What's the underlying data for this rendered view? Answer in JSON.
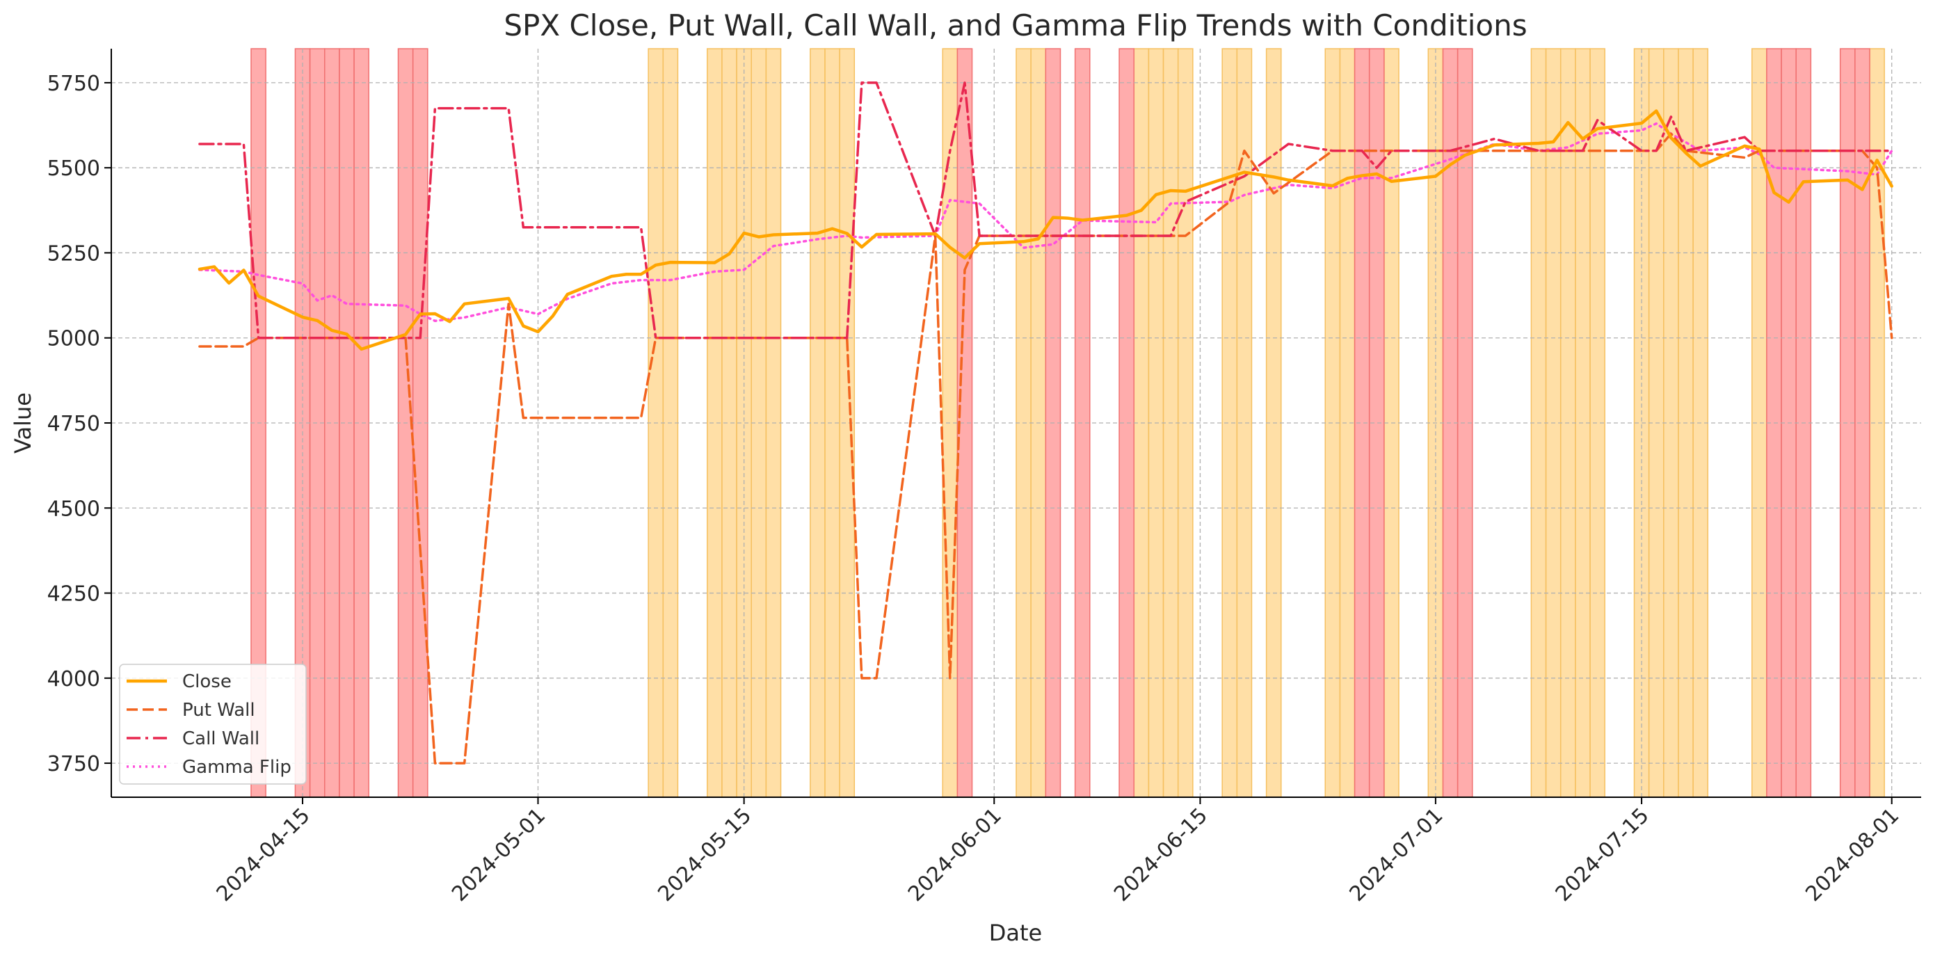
{
  "chart_data": {
    "type": "line",
    "title": "SPX Close, Put Wall, Call Wall, and Gamma Flip Trends with Conditions",
    "xlabel": "Date",
    "ylabel": "Value",
    "ylim": [
      3650,
      5850
    ],
    "xlim": [
      "2024-04-02",
      "2024-08-03"
    ],
    "grid": true,
    "legend_position": "bottom-left",
    "x_ticks": [
      "2024-04-15",
      "2024-05-01",
      "2024-05-15",
      "2024-06-01",
      "2024-06-15",
      "2024-07-01",
      "2024-07-15",
      "2024-08-01"
    ],
    "y_ticks": [
      3750,
      4000,
      4250,
      4500,
      4750,
      5000,
      5250,
      5500,
      5750
    ],
    "series": [
      {
        "name": "Close",
        "color": "#ffa500",
        "style": "solid",
        "points": [
          [
            "2024-04-08",
            5202
          ],
          [
            "2024-04-09",
            5209
          ],
          [
            "2024-04-10",
            5161
          ],
          [
            "2024-04-11",
            5199
          ],
          [
            "2024-04-12",
            5123
          ],
          [
            "2024-04-15",
            5061
          ],
          [
            "2024-04-16",
            5051
          ],
          [
            "2024-04-17",
            5022
          ],
          [
            "2024-04-18",
            5011
          ],
          [
            "2024-04-19",
            4967
          ],
          [
            "2024-04-22",
            5010
          ],
          [
            "2024-04-23",
            5070
          ],
          [
            "2024-04-24",
            5071
          ],
          [
            "2024-04-25",
            5048
          ],
          [
            "2024-04-26",
            5100
          ],
          [
            "2024-04-29",
            5116
          ],
          [
            "2024-04-30",
            5035
          ],
          [
            "2024-05-01",
            5018
          ],
          [
            "2024-05-02",
            5064
          ],
          [
            "2024-05-03",
            5128
          ],
          [
            "2024-05-06",
            5181
          ],
          [
            "2024-05-07",
            5187
          ],
          [
            "2024-05-08",
            5187
          ],
          [
            "2024-05-09",
            5214
          ],
          [
            "2024-05-10",
            5222
          ],
          [
            "2024-05-13",
            5221
          ],
          [
            "2024-05-14",
            5247
          ],
          [
            "2024-05-15",
            5308
          ],
          [
            "2024-05-16",
            5297
          ],
          [
            "2024-05-17",
            5303
          ],
          [
            "2024-05-20",
            5308
          ],
          [
            "2024-05-21",
            5321
          ],
          [
            "2024-05-22",
            5307
          ],
          [
            "2024-05-23",
            5267
          ],
          [
            "2024-05-24",
            5304
          ],
          [
            "2024-05-28",
            5306
          ],
          [
            "2024-05-29",
            5266
          ],
          [
            "2024-05-30",
            5235
          ],
          [
            "2024-05-31",
            5277
          ],
          [
            "2024-06-03",
            5283
          ],
          [
            "2024-06-04",
            5291
          ],
          [
            "2024-06-05",
            5354
          ],
          [
            "2024-06-06",
            5352
          ],
          [
            "2024-06-07",
            5346
          ],
          [
            "2024-06-10",
            5360
          ],
          [
            "2024-06-11",
            5375
          ],
          [
            "2024-06-12",
            5421
          ],
          [
            "2024-06-13",
            5433
          ],
          [
            "2024-06-14",
            5431
          ],
          [
            "2024-06-17",
            5473
          ],
          [
            "2024-06-18",
            5487
          ],
          [
            "2024-06-20",
            5473
          ],
          [
            "2024-06-21",
            5464
          ],
          [
            "2024-06-24",
            5447
          ],
          [
            "2024-06-25",
            5469
          ],
          [
            "2024-06-26",
            5477
          ],
          [
            "2024-06-27",
            5482
          ],
          [
            "2024-06-28",
            5460
          ],
          [
            "2024-07-01",
            5475
          ],
          [
            "2024-07-02",
            5509
          ],
          [
            "2024-07-03",
            5537
          ],
          [
            "2024-07-05",
            5567
          ],
          [
            "2024-07-08",
            5572
          ],
          [
            "2024-07-09",
            5576
          ],
          [
            "2024-07-10",
            5633
          ],
          [
            "2024-07-11",
            5585
          ],
          [
            "2024-07-12",
            5615
          ],
          [
            "2024-07-15",
            5631
          ],
          [
            "2024-07-16",
            5667
          ],
          [
            "2024-07-17",
            5588
          ],
          [
            "2024-07-18",
            5544
          ],
          [
            "2024-07-19",
            5505
          ],
          [
            "2024-07-22",
            5564
          ],
          [
            "2024-07-23",
            5555
          ],
          [
            "2024-07-24",
            5427
          ],
          [
            "2024-07-25",
            5399
          ],
          [
            "2024-07-26",
            5459
          ],
          [
            "2024-07-29",
            5464
          ],
          [
            "2024-07-30",
            5436
          ],
          [
            "2024-07-31",
            5522
          ],
          [
            "2024-08-01",
            5446
          ]
        ]
      },
      {
        "name": "Put Wall",
        "color": "#f2641e",
        "style": "dashed",
        "points": [
          [
            "2024-04-08",
            4975
          ],
          [
            "2024-04-11",
            4975
          ],
          [
            "2024-04-12",
            5000
          ],
          [
            "2024-04-22",
            5000
          ],
          [
            "2024-04-24",
            3750
          ],
          [
            "2024-04-26",
            3750
          ],
          [
            "2024-04-29",
            5100
          ],
          [
            "2024-04-30",
            4765
          ],
          [
            "2024-05-07",
            4765
          ],
          [
            "2024-05-08",
            4765
          ],
          [
            "2024-05-09",
            5000
          ],
          [
            "2024-05-22",
            5000
          ],
          [
            "2024-05-23",
            4000
          ],
          [
            "2024-05-24",
            4000
          ],
          [
            "2024-05-28",
            5300
          ],
          [
            "2024-05-29",
            4000
          ],
          [
            "2024-05-30",
            5200
          ],
          [
            "2024-05-31",
            5300
          ],
          [
            "2024-06-14",
            5300
          ],
          [
            "2024-06-17",
            5400
          ],
          [
            "2024-06-18",
            5550
          ],
          [
            "2024-06-20",
            5425
          ],
          [
            "2024-06-24",
            5550
          ],
          [
            "2024-07-16",
            5550
          ],
          [
            "2024-07-17",
            5600
          ],
          [
            "2024-07-18",
            5550
          ],
          [
            "2024-07-22",
            5530
          ],
          [
            "2024-07-23",
            5550
          ],
          [
            "2024-07-30",
            5550
          ],
          [
            "2024-07-31",
            5500
          ],
          [
            "2024-08-01",
            5000
          ]
        ]
      },
      {
        "name": "Call Wall",
        "color": "#e8274f",
        "style": "dashdot",
        "points": [
          [
            "2024-04-08",
            5570
          ],
          [
            "2024-04-11",
            5570
          ],
          [
            "2024-04-12",
            5000
          ],
          [
            "2024-04-23",
            5000
          ],
          [
            "2024-04-24",
            5675
          ],
          [
            "2024-04-29",
            5675
          ],
          [
            "2024-04-30",
            5325
          ],
          [
            "2024-05-08",
            5325
          ],
          [
            "2024-05-09",
            5000
          ],
          [
            "2024-05-22",
            5000
          ],
          [
            "2024-05-23",
            5750
          ],
          [
            "2024-05-24",
            5750
          ],
          [
            "2024-05-28",
            5300
          ],
          [
            "2024-05-29",
            5550
          ],
          [
            "2024-05-30",
            5750
          ],
          [
            "2024-05-31",
            5300
          ],
          [
            "2024-06-13",
            5300
          ],
          [
            "2024-06-14",
            5400
          ],
          [
            "2024-06-18",
            5475
          ],
          [
            "2024-06-21",
            5570
          ],
          [
            "2024-06-24",
            5550
          ],
          [
            "2024-06-26",
            5550
          ],
          [
            "2024-06-27",
            5500
          ],
          [
            "2024-06-28",
            5550
          ],
          [
            "2024-07-02",
            5550
          ],
          [
            "2024-07-05",
            5585
          ],
          [
            "2024-07-08",
            5550
          ],
          [
            "2024-07-11",
            5550
          ],
          [
            "2024-07-12",
            5640
          ],
          [
            "2024-07-15",
            5550
          ],
          [
            "2024-07-16",
            5550
          ],
          [
            "2024-07-17",
            5650
          ],
          [
            "2024-07-18",
            5550
          ],
          [
            "2024-07-22",
            5590
          ],
          [
            "2024-07-23",
            5550
          ],
          [
            "2024-08-01",
            5550
          ]
        ]
      },
      {
        "name": "Gamma Flip",
        "color": "#ff4fdc",
        "style": "dotted",
        "points": [
          [
            "2024-04-08",
            5200
          ],
          [
            "2024-04-11",
            5195
          ],
          [
            "2024-04-12",
            5185
          ],
          [
            "2024-04-15",
            5160
          ],
          [
            "2024-04-16",
            5110
          ],
          [
            "2024-04-17",
            5125
          ],
          [
            "2024-04-18",
            5100
          ],
          [
            "2024-04-22",
            5095
          ],
          [
            "2024-04-23",
            5070
          ],
          [
            "2024-04-24",
            5050
          ],
          [
            "2024-04-26",
            5060
          ],
          [
            "2024-04-29",
            5090
          ],
          [
            "2024-05-01",
            5070
          ],
          [
            "2024-05-03",
            5115
          ],
          [
            "2024-05-06",
            5160
          ],
          [
            "2024-05-08",
            5170
          ],
          [
            "2024-05-10",
            5170
          ],
          [
            "2024-05-13",
            5195
          ],
          [
            "2024-05-15",
            5200
          ],
          [
            "2024-05-17",
            5270
          ],
          [
            "2024-05-20",
            5290
          ],
          [
            "2024-05-22",
            5300
          ],
          [
            "2024-05-23",
            5295
          ],
          [
            "2024-05-28",
            5300
          ],
          [
            "2024-05-29",
            5405
          ],
          [
            "2024-05-31",
            5395
          ],
          [
            "2024-06-03",
            5265
          ],
          [
            "2024-06-05",
            5275
          ],
          [
            "2024-06-07",
            5345
          ],
          [
            "2024-06-12",
            5340
          ],
          [
            "2024-06-13",
            5395
          ],
          [
            "2024-06-17",
            5400
          ],
          [
            "2024-06-18",
            5420
          ],
          [
            "2024-06-21",
            5450
          ],
          [
            "2024-06-24",
            5440
          ],
          [
            "2024-06-26",
            5470
          ],
          [
            "2024-06-28",
            5470
          ],
          [
            "2024-07-02",
            5525
          ],
          [
            "2024-07-05",
            5570
          ],
          [
            "2024-07-08",
            5550
          ],
          [
            "2024-07-10",
            5560
          ],
          [
            "2024-07-12",
            5600
          ],
          [
            "2024-07-15",
            5610
          ],
          [
            "2024-07-16",
            5630
          ],
          [
            "2024-07-17",
            5600
          ],
          [
            "2024-07-19",
            5550
          ],
          [
            "2024-07-22",
            5560
          ],
          [
            "2024-07-23",
            5540
          ],
          [
            "2024-07-24",
            5500
          ],
          [
            "2024-07-29",
            5490
          ],
          [
            "2024-07-31",
            5480
          ],
          [
            "2024-08-01",
            5550
          ]
        ]
      }
    ],
    "condition_bands": {
      "red": {
        "color": "#ff8c8c",
        "dates": [
          "2024-04-12",
          "2024-04-15",
          "2024-04-16",
          "2024-04-17",
          "2024-04-18",
          "2024-04-19",
          "2024-04-22",
          "2024-04-23",
          "2024-05-30",
          "2024-06-05",
          "2024-06-07",
          "2024-06-10",
          "2024-06-26",
          "2024-06-27",
          "2024-07-02",
          "2024-07-03",
          "2024-07-24",
          "2024-07-25",
          "2024-07-26",
          "2024-07-29",
          "2024-07-30"
        ]
      },
      "orange": {
        "color": "#ffd280",
        "dates": [
          "2024-05-09",
          "2024-05-10",
          "2024-05-13",
          "2024-05-14",
          "2024-05-15",
          "2024-05-16",
          "2024-05-17",
          "2024-05-20",
          "2024-05-21",
          "2024-05-22",
          "2024-05-29",
          "2024-06-03",
          "2024-06-04",
          "2024-06-11",
          "2024-06-12",
          "2024-06-13",
          "2024-06-14",
          "2024-06-17",
          "2024-06-18",
          "2024-06-20",
          "2024-06-24",
          "2024-06-25",
          "2024-06-28",
          "2024-07-01",
          "2024-07-08",
          "2024-07-09",
          "2024-07-10",
          "2024-07-11",
          "2024-07-12",
          "2024-07-15",
          "2024-07-16",
          "2024-07-17",
          "2024-07-18",
          "2024-07-19",
          "2024-07-23",
          "2024-07-31"
        ]
      }
    }
  }
}
